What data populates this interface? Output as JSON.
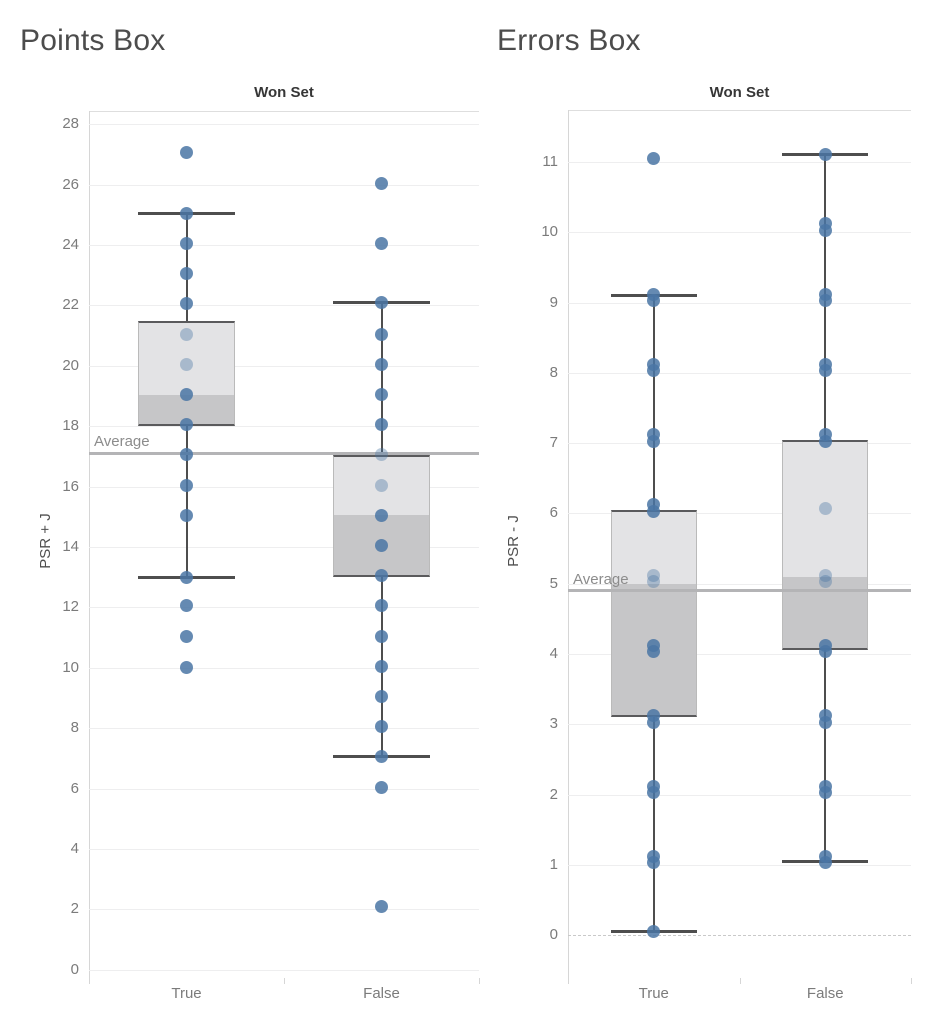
{
  "chart_data": [
    {
      "type": "box",
      "title": "Points Box",
      "column_header": "Won Set",
      "ylabel": "PSR + J",
      "categories": [
        "True",
        "False"
      ],
      "yticks": [
        0,
        2,
        4,
        6,
        8,
        10,
        12,
        14,
        16,
        18,
        20,
        22,
        24,
        26,
        28
      ],
      "ylim": [
        -0.27,
        28.44
      ],
      "grid": true,
      "zero_line_dashed": false,
      "average_line": {
        "label": "Average",
        "value": 17.1
      },
      "series": [
        {
          "category": "True",
          "box": {
            "whisker_low": 13.0,
            "q1": 18.0,
            "median": 19.05,
            "q3": 21.5,
            "whisker_high": 25.05
          },
          "points": [
            27.05,
            25.05,
            24.05,
            23.05,
            22.05,
            21.05,
            20.05,
            19.05,
            18.05,
            17.05,
            16.05,
            15.05,
            13.0,
            12.05,
            11.05,
            10.0
          ],
          "light_points": [
            21.05,
            20.05
          ]
        },
        {
          "category": "False",
          "box": {
            "whisker_low": 7.05,
            "q1": 13.0,
            "median": 15.05,
            "q3": 17.05,
            "whisker_high": 22.1
          },
          "points": [
            26.05,
            24.05,
            22.1,
            21.05,
            20.05,
            19.05,
            18.05,
            17.05,
            16.05,
            15.05,
            14.05,
            13.05,
            12.05,
            11.05,
            10.05,
            9.05,
            8.05,
            7.05,
            6.05,
            2.1
          ],
          "light_points": [
            17.05,
            16.05
          ]
        }
      ]
    },
    {
      "type": "box",
      "title": "Errors Box",
      "column_header": "Won Set",
      "ylabel": "PSR - J",
      "categories": [
        "True",
        "False"
      ],
      "yticks": [
        0,
        1,
        2,
        3,
        4,
        5,
        6,
        7,
        8,
        9,
        10,
        11
      ],
      "ylim": [
        -0.61,
        11.74
      ],
      "grid": true,
      "zero_line_dashed": true,
      "average_line": {
        "label": "Average",
        "value": 4.9
      },
      "series": [
        {
          "category": "True",
          "box": {
            "whisker_low": 0.05,
            "q1": 3.1,
            "median": 5.0,
            "q3": 6.05,
            "whisker_high": 9.1
          },
          "points": [
            11.05,
            9.12,
            9.03,
            8.12,
            8.03,
            7.12,
            7.03,
            6.12,
            6.03,
            5.12,
            5.03,
            4.12,
            4.03,
            3.12,
            3.03,
            2.12,
            2.03,
            1.12,
            1.03,
            0.05
          ],
          "light_points": [
            5.12,
            5.03
          ]
        },
        {
          "category": "False",
          "box": {
            "whisker_low": 1.05,
            "q1": 4.05,
            "median": 5.1,
            "q3": 7.05,
            "whisker_high": 11.1
          },
          "points": [
            11.1,
            10.12,
            10.03,
            9.12,
            9.03,
            8.12,
            8.03,
            7.12,
            7.03,
            6.07,
            5.12,
            5.03,
            4.12,
            4.03,
            3.12,
            3.03,
            2.12,
            2.03,
            1.12,
            1.03
          ],
          "light_points": [
            6.07,
            5.12,
            5.03
          ]
        }
      ]
    }
  ],
  "colors": {
    "point": "#4a76a4",
    "box_upper": "#e3e3e5",
    "box_lower": "#c6c6c8",
    "box_border": "#5a5a5c",
    "box_side": "#bababa",
    "whisker": "#4e4e4e",
    "average_line": "#b4b4b6",
    "zero_line": "#c9c9c9",
    "gridline": "#eeeeef",
    "axis_line": "#d6d6d6",
    "pane_border": "#dedede",
    "title_text": "#4c4c4c",
    "header_text": "#363636",
    "tick_text": "#7b7b7b",
    "average_text": "#8c8c8c"
  }
}
